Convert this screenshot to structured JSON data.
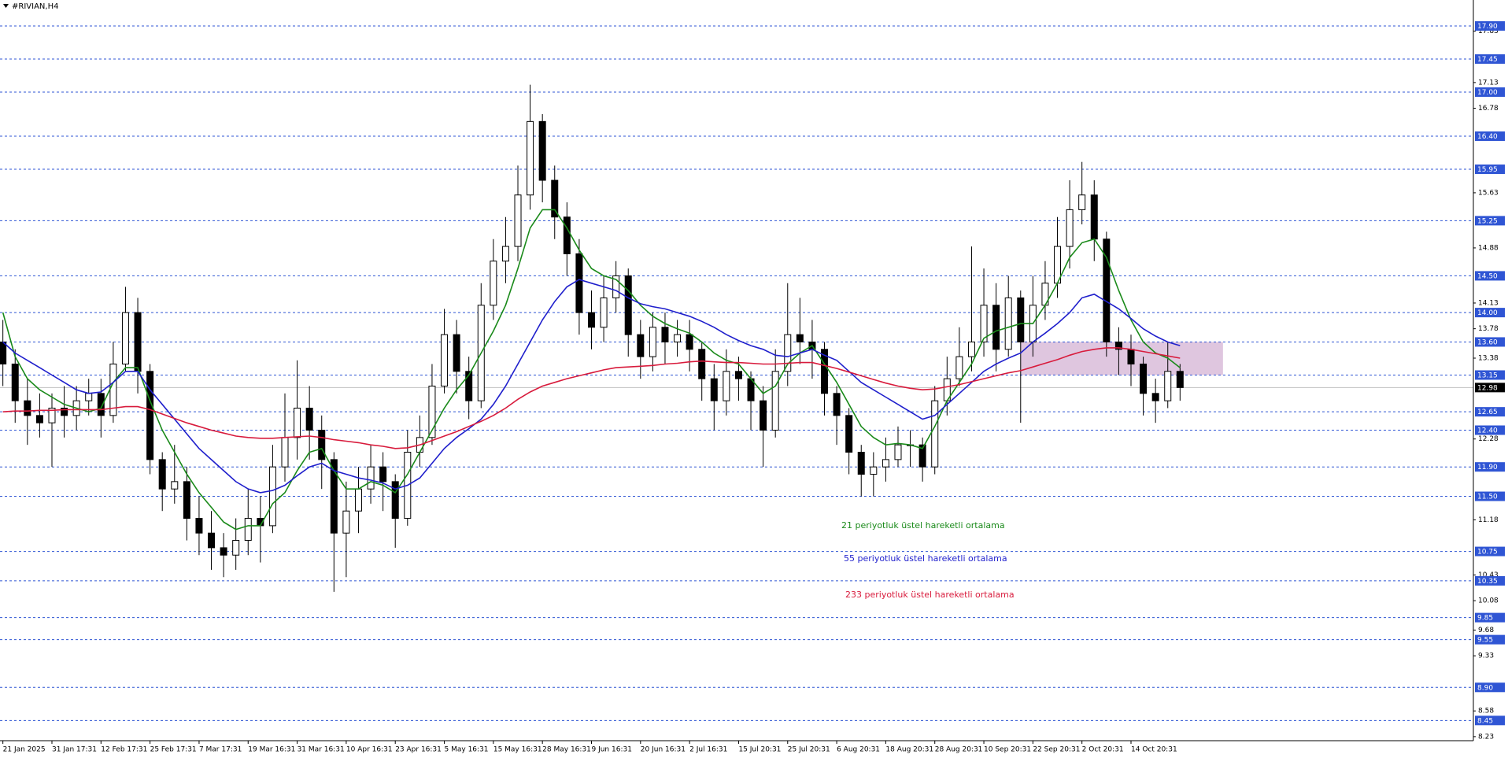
{
  "chart_data": {
    "type": "candlestick",
    "title": "#RIVIAN,H4",
    "categories": [
      "21 Jan 2025",
      null,
      null,
      null,
      "31 Jan 17:31",
      null,
      null,
      null,
      "12 Feb 17:31",
      null,
      null,
      null,
      "25 Feb 17:31",
      null,
      null,
      null,
      "7 Mar 17:31",
      null,
      null,
      null,
      "19 Mar 16:31",
      null,
      null,
      null,
      "31 Mar 16:31",
      null,
      null,
      null,
      "10 Apr 16:31",
      null,
      null,
      null,
      "23 Apr 16:31",
      null,
      null,
      null,
      "5 May 16:31",
      null,
      null,
      null,
      "15 May 16:31",
      null,
      null,
      null,
      "28 May 16:31",
      null,
      null,
      null,
      "9 Jun 16:31",
      null,
      null,
      null,
      "20 Jun 16:31",
      null,
      null,
      null,
      "2 Jul 16:31",
      null,
      null,
      null,
      "15 Jul 20:31",
      null,
      null,
      null,
      "25 Jul 20:31",
      null,
      null,
      null,
      "6 Aug 20:31",
      null,
      null,
      null,
      "18 Aug 20:31",
      null,
      null,
      null,
      "28 Aug 20:31",
      null,
      null,
      null,
      "10 Sep 20:31",
      null,
      null,
      null,
      "22 Sep 20:31",
      null,
      null,
      null,
      "2 Oct 20:31",
      null,
      null,
      null,
      "14 Oct 20:31",
      null,
      null,
      null,
      null
    ],
    "open": [
      13.6,
      13.3,
      12.8,
      12.6,
      12.5,
      12.7,
      12.6,
      12.8,
      12.9,
      12.6,
      13.3,
      14.0,
      13.2,
      12.0,
      11.6,
      11.7,
      11.2,
      11.0,
      10.8,
      10.7,
      10.9,
      11.2,
      11.1,
      11.9,
      12.3,
      12.7,
      12.4,
      12.0,
      11.0,
      11.3,
      11.6,
      11.9,
      11.7,
      11.2,
      12.1,
      12.3,
      13.0,
      13.7,
      13.2,
      12.8,
      14.1,
      14.7,
      14.9,
      15.6,
      16.6,
      15.8,
      15.3,
      14.8,
      14.0,
      13.8,
      14.2,
      14.5,
      13.7,
      13.4,
      13.8,
      13.6,
      13.7,
      13.5,
      13.1,
      12.8,
      13.2,
      13.1,
      12.8,
      12.4,
      13.2,
      13.7,
      13.6,
      13.5,
      12.9,
      12.6,
      12.1,
      11.8,
      11.9,
      12.0,
      12.2,
      12.2,
      11.9,
      12.8,
      13.1,
      13.4,
      13.6,
      14.1,
      13.5,
      14.2,
      13.6,
      14.1,
      14.4,
      14.9,
      15.4,
      15.6,
      15.0,
      13.6,
      13.5,
      13.3,
      12.9,
      12.8,
      13.2
    ],
    "high": [
      13.9,
      13.5,
      13.1,
      12.9,
      12.9,
      13.0,
      13.0,
      13.1,
      13.1,
      13.6,
      14.35,
      14.2,
      13.3,
      12.1,
      12.2,
      11.9,
      11.5,
      11.3,
      11.0,
      11.2,
      11.6,
      11.5,
      12.2,
      12.9,
      13.35,
      13.0,
      12.6,
      12.1,
      11.7,
      11.9,
      12.2,
      12.1,
      11.8,
      12.4,
      12.6,
      13.3,
      14.05,
      13.9,
      13.4,
      14.4,
      15.0,
      15.3,
      16.0,
      17.1,
      16.7,
      16.0,
      15.5,
      15.0,
      14.3,
      14.5,
      14.7,
      14.6,
      13.9,
      14.0,
      14.0,
      13.9,
      13.9,
      13.6,
      13.3,
      13.5,
      13.4,
      13.2,
      13.0,
      13.5,
      14.4,
      14.2,
      13.9,
      13.6,
      13.0,
      12.7,
      12.2,
      12.1,
      12.3,
      12.45,
      12.4,
      12.3,
      13.0,
      13.4,
      13.8,
      14.9,
      14.6,
      14.4,
      14.5,
      14.3,
      14.5,
      14.7,
      15.3,
      15.8,
      16.05,
      15.8,
      15.1,
      13.8,
      13.7,
      13.4,
      13.1,
      13.6,
      13.3
    ],
    "low": [
      13.0,
      12.5,
      12.2,
      12.3,
      11.9,
      12.3,
      12.4,
      12.6,
      12.3,
      12.5,
      13.2,
      12.9,
      11.8,
      11.3,
      11.4,
      10.9,
      10.7,
      10.5,
      10.4,
      10.5,
      10.7,
      10.6,
      11.0,
      11.7,
      12.0,
      12.0,
      11.6,
      10.2,
      10.4,
      11.0,
      11.4,
      11.3,
      10.8,
      11.1,
      11.9,
      12.2,
      12.9,
      12.9,
      12.55,
      12.7,
      13.9,
      14.4,
      14.7,
      15.4,
      15.5,
      15.0,
      14.5,
      13.7,
      13.5,
      13.6,
      14.0,
      13.4,
      13.1,
      13.2,
      13.3,
      13.4,
      13.2,
      12.8,
      12.4,
      12.6,
      12.8,
      12.4,
      11.9,
      12.3,
      13.0,
      13.3,
      13.1,
      12.6,
      12.2,
      11.8,
      11.5,
      11.5,
      11.7,
      11.9,
      11.9,
      11.7,
      11.8,
      12.6,
      13.0,
      13.2,
      13.4,
      13.2,
      13.4,
      12.5,
      13.4,
      13.9,
      14.2,
      14.6,
      15.2,
      14.7,
      13.4,
      13.15,
      13.0,
      12.6,
      12.5,
      12.7,
      12.8
    ],
    "close": [
      13.3,
      12.8,
      12.6,
      12.5,
      12.7,
      12.6,
      12.8,
      12.9,
      12.6,
      13.3,
      14.0,
      13.2,
      12.0,
      11.6,
      11.7,
      11.2,
      11.0,
      10.8,
      10.7,
      10.9,
      11.2,
      11.1,
      11.9,
      12.3,
      12.7,
      12.4,
      12.0,
      11.0,
      11.3,
      11.6,
      11.9,
      11.7,
      11.2,
      12.1,
      12.3,
      13.0,
      13.7,
      13.2,
      12.8,
      14.1,
      14.7,
      14.9,
      15.6,
      16.6,
      15.8,
      15.3,
      14.8,
      14.0,
      13.8,
      14.2,
      14.5,
      13.7,
      13.4,
      13.8,
      13.6,
      13.7,
      13.5,
      13.1,
      12.8,
      13.2,
      13.1,
      12.8,
      12.4,
      13.2,
      13.7,
      13.6,
      13.5,
      12.9,
      12.6,
      12.1,
      11.8,
      11.9,
      12.0,
      12.2,
      12.2,
      11.9,
      12.8,
      13.1,
      13.4,
      13.6,
      14.1,
      13.5,
      14.2,
      13.6,
      14.1,
      14.4,
      14.9,
      15.4,
      15.6,
      15.0,
      13.6,
      13.5,
      13.3,
      12.9,
      12.8,
      13.2,
      12.98
    ],
    "series": [
      {
        "name": "21 periyotluk üstel hareketli ortalama",
        "color": "#1a8a1a",
        "values": [
          14.0,
          13.4,
          13.1,
          12.95,
          12.85,
          12.75,
          12.7,
          12.65,
          12.7,
          13.05,
          13.25,
          13.25,
          12.8,
          12.4,
          12.1,
          11.8,
          11.55,
          11.35,
          11.15,
          11.05,
          11.1,
          11.1,
          11.4,
          11.55,
          11.85,
          12.1,
          12.15,
          11.85,
          11.6,
          11.6,
          11.7,
          11.65,
          11.55,
          11.8,
          12.1,
          12.4,
          12.7,
          12.95,
          13.15,
          13.45,
          13.75,
          14.1,
          14.6,
          15.15,
          15.4,
          15.4,
          15.15,
          14.85,
          14.6,
          14.5,
          14.45,
          14.3,
          14.1,
          13.95,
          13.85,
          13.78,
          13.72,
          13.6,
          13.45,
          13.35,
          13.3,
          13.1,
          12.9,
          13.0,
          13.3,
          13.45,
          13.55,
          13.3,
          13.05,
          12.75,
          12.45,
          12.3,
          12.2,
          12.22,
          12.2,
          12.15,
          12.45,
          12.8,
          13.05,
          13.3,
          13.65,
          13.75,
          13.8,
          13.85,
          13.85,
          14.1,
          14.4,
          14.75,
          14.95,
          15.0,
          14.75,
          14.3,
          13.9,
          13.6,
          13.45,
          13.38,
          13.25
        ]
      },
      {
        "name": "55 periyotluk üstel hareketli ortalama",
        "color": "#1f1fcc",
        "values": [
          13.6,
          13.45,
          13.35,
          13.25,
          13.15,
          13.05,
          12.95,
          12.9,
          12.92,
          13.05,
          13.2,
          13.2,
          12.95,
          12.75,
          12.55,
          12.35,
          12.15,
          12.0,
          11.85,
          11.7,
          11.6,
          11.55,
          11.58,
          11.65,
          11.78,
          11.9,
          11.95,
          11.85,
          11.8,
          11.75,
          11.72,
          11.68,
          11.6,
          11.65,
          11.75,
          11.95,
          12.15,
          12.3,
          12.42,
          12.55,
          12.75,
          13.0,
          13.3,
          13.6,
          13.9,
          14.15,
          14.35,
          14.45,
          14.4,
          14.35,
          14.3,
          14.2,
          14.12,
          14.08,
          14.05,
          14.0,
          13.95,
          13.88,
          13.8,
          13.7,
          13.62,
          13.55,
          13.5,
          13.42,
          13.4,
          13.45,
          13.5,
          13.42,
          13.35,
          13.2,
          13.05,
          12.95,
          12.85,
          12.75,
          12.65,
          12.55,
          12.6,
          12.75,
          12.9,
          13.05,
          13.2,
          13.3,
          13.38,
          13.45,
          13.6,
          13.72,
          13.85,
          14.0,
          14.2,
          14.25,
          14.15,
          14.05,
          13.92,
          13.78,
          13.68,
          13.6,
          13.55
        ]
      },
      {
        "name": "233 periyotluk üstel hareketli ortalama",
        "color": "#d81b3c",
        "values": [
          12.65,
          12.66,
          12.66,
          12.67,
          12.67,
          12.68,
          12.68,
          12.68,
          12.68,
          12.7,
          12.72,
          12.72,
          12.68,
          12.62,
          12.56,
          12.5,
          12.45,
          12.4,
          12.36,
          12.32,
          12.3,
          12.29,
          12.29,
          12.3,
          12.31,
          12.32,
          12.3,
          12.27,
          12.25,
          12.23,
          12.2,
          12.18,
          12.15,
          12.16,
          12.2,
          12.26,
          12.32,
          12.38,
          12.45,
          12.52,
          12.6,
          12.7,
          12.82,
          12.92,
          13.0,
          13.05,
          13.1,
          13.14,
          13.18,
          13.22,
          13.25,
          13.26,
          13.27,
          13.28,
          13.3,
          13.31,
          13.33,
          13.34,
          13.33,
          13.32,
          13.32,
          13.31,
          13.3,
          13.3,
          13.31,
          13.32,
          13.32,
          13.28,
          13.24,
          13.19,
          13.14,
          13.09,
          13.04,
          13.0,
          12.97,
          12.95,
          12.96,
          12.99,
          13.02,
          13.06,
          13.1,
          13.14,
          13.18,
          13.21,
          13.26,
          13.31,
          13.36,
          13.42,
          13.47,
          13.5,
          13.52,
          13.52,
          13.5,
          13.47,
          13.44,
          13.41,
          13.38
        ]
      }
    ],
    "ylim": [
      8.175,
      18.253
    ],
    "yticks": [
      17.83,
      17.13,
      16.78,
      15.63,
      14.88,
      14.13,
      13.78,
      13.38,
      12.28,
      11.18,
      10.43,
      10.08,
      9.68,
      9.33,
      8.58,
      8.23
    ],
    "levels": [
      {
        "value": 17.9,
        "label": "17.90"
      },
      17.45,
      {
        "value": 17,
        "label": "17.00"
      },
      {
        "value": 16.4,
        "label": "16.40"
      },
      15.95,
      15.25,
      {
        "value": 14.5,
        "label": "14.50"
      },
      {
        "value": 14,
        "label": "14.00"
      },
      {
        "value": 13.6,
        "label": "13.60"
      },
      13.15,
      12.65,
      {
        "value": 12.4,
        "label": "12.40"
      },
      {
        "value": 11.9,
        "label": "11.90"
      },
      {
        "value": 11.5,
        "label": "11.50"
      },
      10.75,
      10.35,
      9.85,
      9.55,
      {
        "value": 8.9,
        "label": "8.90"
      },
      8.45
    ],
    "level_color": "#2f55d4",
    "last_price": 12.98,
    "zone": {
      "from": 83,
      "to": 99.5,
      "low": 13.15,
      "high": 13.6,
      "color": "#d9bcd9"
    }
  }
}
